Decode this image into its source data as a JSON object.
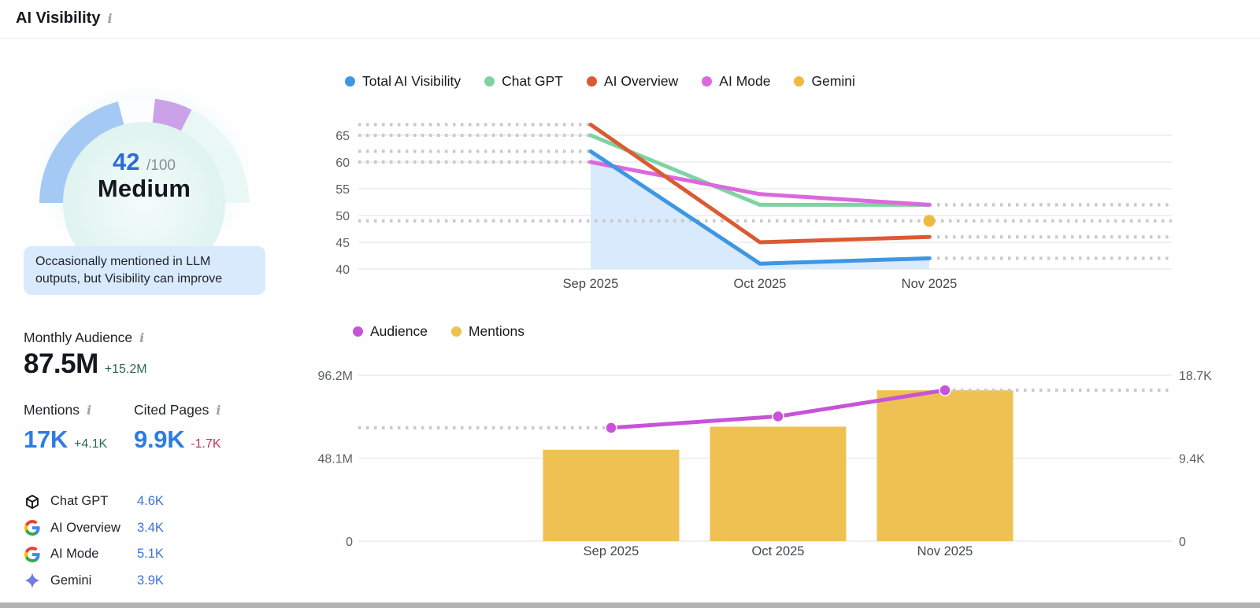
{
  "header": {
    "title": "AI Visibility"
  },
  "gauge": {
    "score": "42",
    "denominator": "/100",
    "label": "Medium",
    "note": "Occasionally mentioned in LLM outputs, but Visibility can improve"
  },
  "metrics": {
    "monthly_audience": {
      "label": "Monthly Audience",
      "value": "87.5M",
      "delta": "+15.2M"
    },
    "mentions": {
      "label": "Mentions",
      "value": "17K",
      "delta": "+4.1K"
    },
    "cited_pages": {
      "label": "Cited Pages",
      "value": "9.9K",
      "delta": "-1.7K"
    }
  },
  "platforms": [
    {
      "name": "Chat GPT",
      "icon": "chatgpt-icon",
      "value": "4.6K"
    },
    {
      "name": "AI Overview",
      "icon": "google-icon",
      "value": "3.4K"
    },
    {
      "name": "AI Mode",
      "icon": "google-icon",
      "value": "5.1K"
    },
    {
      "name": "Gemini",
      "icon": "gemini-icon",
      "value": "3.9K"
    }
  ],
  "chart_data": [
    {
      "type": "line",
      "title": "AI Visibility score by platform",
      "categories": [
        "Sep 2025",
        "Oct 2025",
        "Nov 2025"
      ],
      "series": [
        {
          "name": "Total AI Visibility",
          "color": "#3e97e3",
          "values": [
            62,
            41,
            42
          ],
          "area": true
        },
        {
          "name": "Chat GPT",
          "color": "#7ed3a2",
          "values": [
            65,
            52,
            52
          ]
        },
        {
          "name": "AI Overview",
          "color": "#da5b33",
          "values": [
            67,
            45,
            46
          ]
        },
        {
          "name": "AI Mode",
          "color": "#dc68dd",
          "values": [
            60,
            54,
            52
          ]
        },
        {
          "name": "Gemini",
          "color": "#eeba42",
          "values": [
            null,
            null,
            49
          ],
          "dot_only": true
        }
      ],
      "y_ticks": [
        40,
        45,
        50,
        55,
        60,
        65
      ],
      "ylim": [
        40,
        67.5
      ],
      "grid": true,
      "legend_position": "top",
      "area_fill": "#d8eafb"
    },
    {
      "type": "bar+line",
      "title": "Audience and Mentions by month",
      "categories": [
        "Sep 2025",
        "Oct 2025",
        "Nov 2025"
      ],
      "series": [
        {
          "name": "Audience",
          "type": "line",
          "axis": "left",
          "unit": "M",
          "color": "#c754d8",
          "values": [
            65.7,
            72.3,
            87.5
          ]
        },
        {
          "name": "Mentions",
          "type": "bar",
          "axis": "right",
          "unit": "K",
          "color": "#efc152",
          "values": [
            10.3,
            12.9,
            17.0
          ]
        }
      ],
      "left_axis": {
        "ticks": [
          "0",
          "48.1M",
          "96.2M"
        ],
        "tick_values": [
          0,
          48.1,
          96.2
        ],
        "max": 96.2
      },
      "right_axis": {
        "ticks": [
          "0",
          "9.4K",
          "18.7K"
        ],
        "tick_values": [
          0,
          9.4,
          18.7
        ],
        "max": 18.7
      },
      "grid": true,
      "legend_position": "top"
    }
  ],
  "colors": {
    "score_blue": "#2e6bd5",
    "metric_blue": "#2f7ce0",
    "delta_green": "#2c6a4f",
    "delta_red": "#c0344f",
    "gauge_blue": "#a4c9f4",
    "gauge_purple": "#cba2e8",
    "gauge_track": "#e9f7f5",
    "note_bg": "#d9eafc",
    "grid_gray": "#ececee",
    "dotted_gray": "#c9c9cd"
  }
}
